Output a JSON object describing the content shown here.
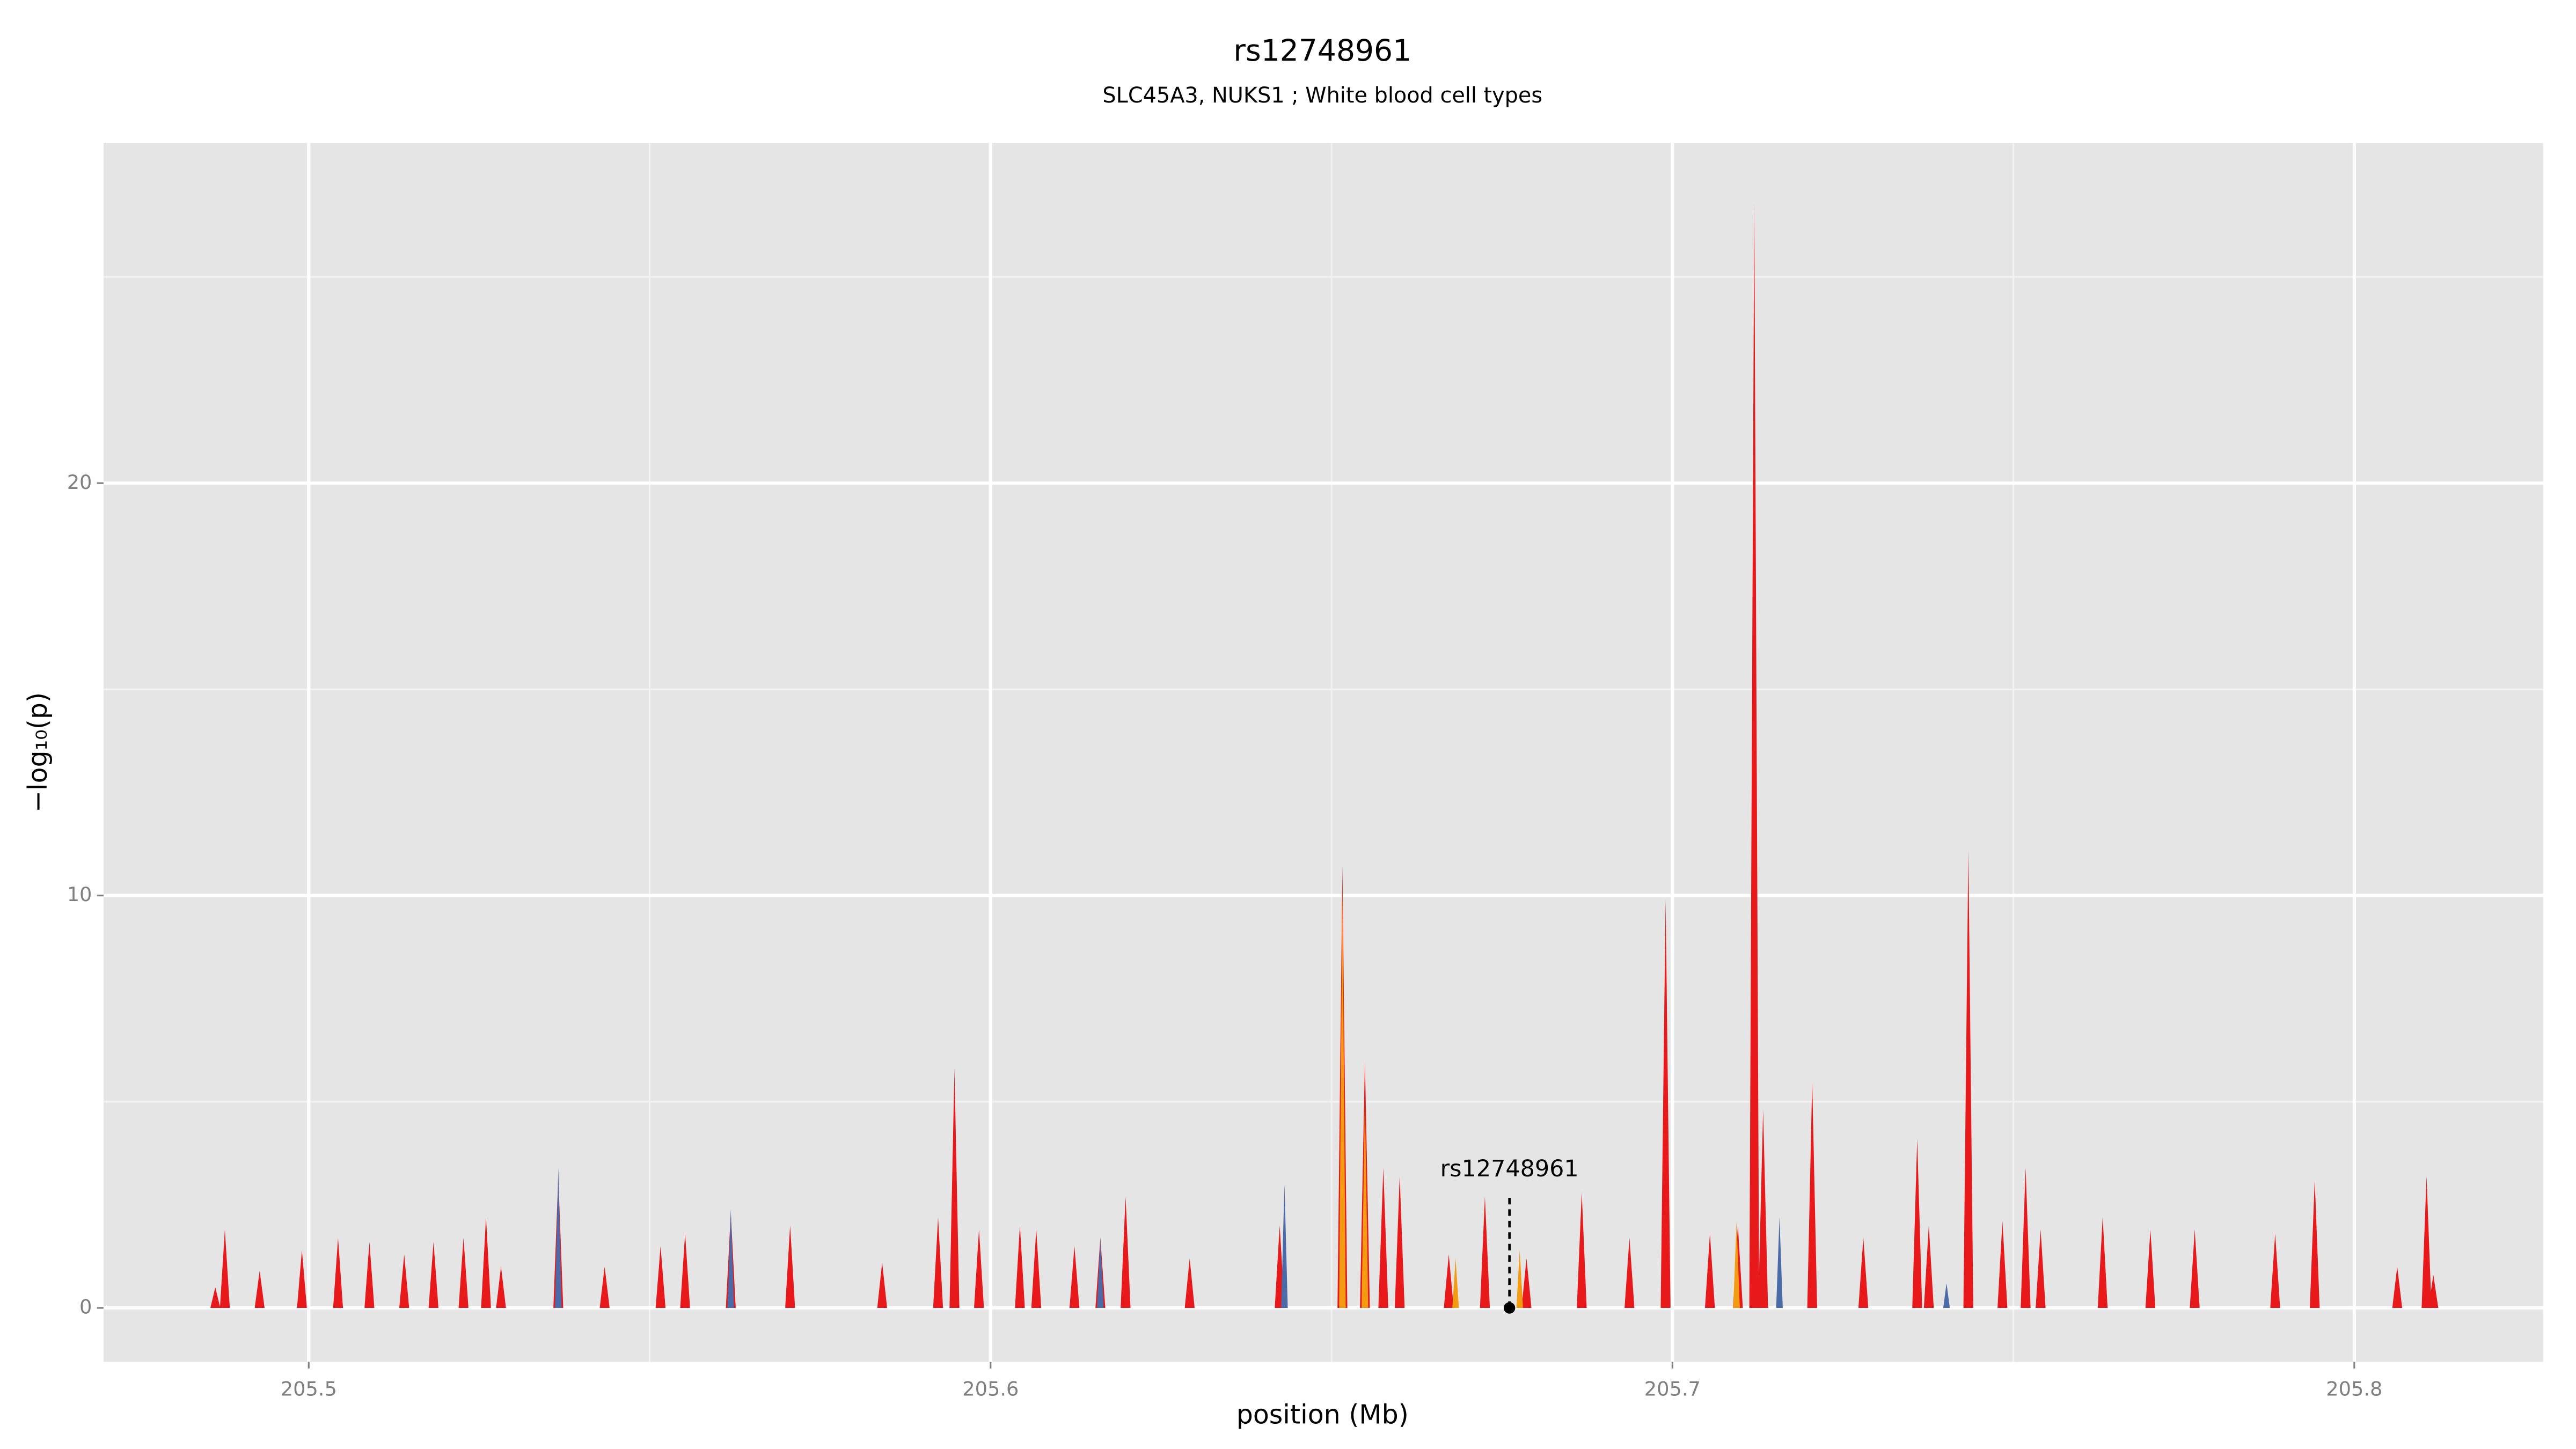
{
  "chart_data": {
    "type": "spike",
    "title": "rs12748961",
    "subtitle": "SLC45A3, NUKS1 ; White blood cell types",
    "x_label": "position (Mb)",
    "y_label": "−log₁₀(p)",
    "xlim": [
      205.4699,
      205.8277
    ],
    "ylim": [
      -1.31,
      28.25
    ],
    "xticks": [
      205.5,
      205.6,
      205.7,
      205.8
    ],
    "yticks": [
      0,
      10,
      20
    ],
    "grid": true,
    "series": [
      {
        "color": "#e8191b",
        "x": [
          205.4863,
          205.4877,
          205.4928,
          205.499,
          205.5043,
          205.5089,
          205.514,
          205.5183,
          205.5227,
          205.526,
          205.5282,
          205.5366,
          205.5434,
          205.5516,
          205.5552,
          205.5619,
          205.5706,
          205.5841,
          205.5923,
          205.5947,
          205.5983,
          205.6043,
          205.6067,
          205.6123,
          205.6161,
          205.6198,
          205.6292,
          205.6424,
          205.6516,
          205.6549,
          205.6576,
          205.66,
          205.6672,
          205.6725,
          205.6786,
          205.6867,
          205.6937,
          205.699,
          205.7055,
          205.7096,
          205.712,
          205.7133,
          205.7205,
          205.728,
          205.7359,
          205.7376,
          205.7434,
          205.7484,
          205.7518,
          205.754,
          205.7631,
          205.7701,
          205.7766,
          205.7884,
          205.7942,
          205.8063,
          205.8106,
          205.8116
        ],
        "values": [
          0.5,
          1.9,
          0.9,
          1.4,
          1.7,
          1.6,
          1.3,
          1.6,
          1.7,
          2.2,
          1.0,
          3.2,
          1.0,
          1.5,
          1.8,
          2.3,
          2.0,
          1.1,
          2.2,
          5.8,
          1.9,
          2.0,
          1.9,
          1.5,
          1.7,
          2.7,
          1.2,
          2.0,
          10.7,
          6.0,
          3.4,
          3.2,
          1.3,
          2.7,
          1.2,
          2.8,
          1.7,
          9.9,
          1.8,
          2.0,
          26.8,
          4.8,
          5.5,
          1.7,
          4.1,
          2.0,
          11.1,
          2.1,
          3.4,
          1.9,
          2.2,
          1.9,
          1.9,
          1.8,
          3.1,
          1.0,
          3.2,
          0.8
        ]
      },
      {
        "color": "#f39c12",
        "x": [
          205.6516,
          205.6549,
          205.6682,
          205.6776,
          205.7094
        ],
        "values": [
          10.2,
          5.0,
          1.2,
          1.4,
          2.1
        ]
      },
      {
        "color": "#4a6aa8",
        "x": [
          205.5366,
          205.5619,
          205.6161,
          205.6431,
          205.7157,
          205.7402
        ],
        "values": [
          3.4,
          2.4,
          1.7,
          3.0,
          2.2,
          0.6
        ]
      }
    ],
    "annotation": {
      "label": "rs12748961",
      "x": 205.6761,
      "y": 0,
      "line_top": 2.7
    }
  }
}
